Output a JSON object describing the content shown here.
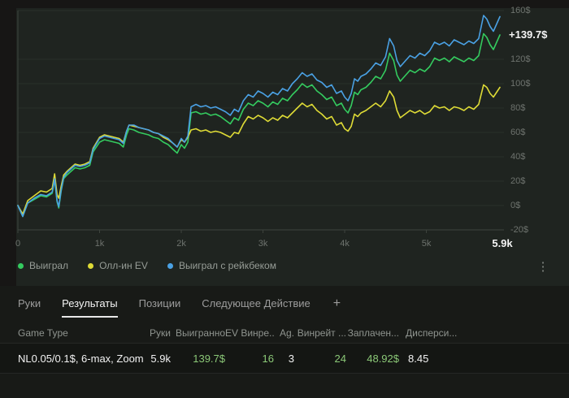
{
  "chart": {
    "y_axis": {
      "ticks": [
        {
          "label": "160$",
          "value": 160
        },
        {
          "label": "120$",
          "value": 120
        },
        {
          "label": "100$",
          "value": 100
        },
        {
          "label": "80$",
          "value": 80
        },
        {
          "label": "60$",
          "value": 60
        },
        {
          "label": "40$",
          "value": 40
        },
        {
          "label": "20$",
          "value": 20
        },
        {
          "label": "0$",
          "value": 0
        },
        {
          "label": "-20$",
          "value": -20
        }
      ]
    },
    "hidden_gridline_value": 140,
    "x_axis": {
      "ticks": [
        {
          "label": "0",
          "hands": 0
        },
        {
          "label": "1k",
          "hands": 1000
        },
        {
          "label": "2k",
          "hands": 2000
        },
        {
          "label": "3k",
          "hands": 3000
        },
        {
          "label": "4k",
          "hands": 4000
        },
        {
          "label": "5k",
          "hands": 5000
        }
      ],
      "end": {
        "label": "5.9k",
        "hands": 5900
      }
    }
  },
  "chart_data": {
    "type": "line",
    "xlabel_units": "hands",
    "xlim": [
      0,
      5900
    ],
    "ylim": [
      -20,
      160
    ],
    "grid": "horizontal",
    "legend_position": "bottom-left",
    "annotation": {
      "text": "+139.7$",
      "value": 139.7
    },
    "x": [
      0,
      60,
      120,
      200,
      280,
      350,
      420,
      450,
      480,
      500,
      530,
      560,
      600,
      650,
      700,
      760,
      820,
      880,
      920,
      1000,
      1060,
      1120,
      1180,
      1240,
      1290,
      1330,
      1360,
      1420,
      1480,
      1540,
      1600,
      1660,
      1720,
      1780,
      1840,
      1900,
      1950,
      2000,
      2040,
      2080,
      2120,
      2180,
      2240,
      2300,
      2360,
      2420,
      2480,
      2540,
      2600,
      2650,
      2700,
      2760,
      2820,
      2880,
      2940,
      3000,
      3060,
      3120,
      3180,
      3240,
      3300,
      3360,
      3420,
      3480,
      3540,
      3600,
      3660,
      3720,
      3780,
      3840,
      3900,
      3960,
      4000,
      4040,
      4080,
      4120,
      4160,
      4200,
      4260,
      4320,
      4380,
      4440,
      4500,
      4550,
      4600,
      4640,
      4680,
      4720,
      4760,
      4800,
      4860,
      4920,
      4980,
      5040,
      5100,
      5160,
      5220,
      5280,
      5340,
      5400,
      5460,
      5520,
      5580,
      5640,
      5700,
      5740,
      5780,
      5820,
      5860,
      5900
    ],
    "series": [
      {
        "name": "Выиграл",
        "color": "#34cb5f",
        "final_value": 139.7,
        "values": [
          0,
          -9,
          2,
          5,
          8,
          7,
          10,
          21,
          3,
          -2,
          12,
          22,
          25,
          28,
          31,
          30,
          31,
          33,
          44,
          52,
          54,
          53,
          52,
          51,
          48,
          58,
          63,
          62,
          60,
          59,
          58,
          56,
          55,
          52,
          50,
          46,
          43,
          50,
          47,
          52,
          76,
          77,
          75,
          76,
          74,
          75,
          73,
          70,
          67,
          72,
          70,
          79,
          84,
          82,
          86,
          84,
          81,
          85,
          83,
          88,
          86,
          91,
          95,
          100,
          97,
          99,
          94,
          91,
          87,
          89,
          82,
          84,
          79,
          76,
          82,
          93,
          91,
          95,
          97,
          101,
          106,
          104,
          111,
          125,
          119,
          107,
          102,
          105,
          108,
          111,
          109,
          112,
          110,
          114,
          121,
          119,
          121,
          118,
          122,
          120,
          118,
          121,
          119,
          123,
          141,
          138,
          132,
          128,
          134,
          140
        ]
      },
      {
        "name": "Олл-ин EV",
        "color": "#dedb36",
        "values": [
          0,
          -7,
          4,
          8,
          12,
          11,
          14,
          26,
          9,
          6,
          16,
          25,
          28,
          31,
          34,
          33,
          34,
          36,
          47,
          56,
          58,
          57,
          56,
          55,
          52,
          61,
          66,
          65,
          64,
          63,
          62,
          60,
          59,
          56,
          54,
          51,
          48,
          54,
          52,
          56,
          62,
          63,
          61,
          62,
          60,
          61,
          60,
          58,
          56,
          60,
          59,
          67,
          73,
          71,
          74,
          72,
          69,
          72,
          70,
          74,
          72,
          76,
          80,
          84,
          81,
          83,
          78,
          75,
          71,
          73,
          66,
          68,
          63,
          61,
          65,
          75,
          73,
          76,
          78,
          81,
          84,
          81,
          86,
          94,
          89,
          78,
          72,
          74,
          76,
          78,
          76,
          78,
          75,
          77,
          82,
          80,
          81,
          78,
          81,
          80,
          78,
          81,
          79,
          83,
          99,
          97,
          92,
          89,
          93,
          97
        ]
      },
      {
        "name": "Выиграл с рейкбеком",
        "color": "#4aa1e4",
        "values": [
          0,
          -9,
          2,
          6,
          9,
          8,
          11,
          22,
          4,
          -1,
          13,
          23,
          27,
          30,
          33,
          32,
          33,
          35,
          46,
          55,
          57,
          56,
          55,
          54,
          51,
          61,
          66,
          66,
          64,
          63,
          62,
          60,
          59,
          57,
          55,
          51,
          48,
          55,
          52,
          57,
          81,
          83,
          81,
          82,
          80,
          81,
          79,
          77,
          74,
          79,
          77,
          86,
          91,
          89,
          94,
          92,
          89,
          93,
          91,
          96,
          94,
          100,
          104,
          109,
          106,
          108,
          103,
          101,
          97,
          99,
          92,
          94,
          89,
          86,
          92,
          104,
          102,
          106,
          108,
          112,
          117,
          115,
          122,
          137,
          131,
          119,
          114,
          117,
          120,
          123,
          121,
          125,
          123,
          127,
          134,
          132,
          134,
          131,
          136,
          134,
          132,
          135,
          133,
          137,
          156,
          153,
          147,
          143,
          149,
          155
        ]
      }
    ]
  },
  "icons": {
    "more_vertical": "⋮",
    "add_tab": "+"
  },
  "tabs": {
    "items": [
      "Руки",
      "Результаты",
      "Позиции",
      "Следующее Действие"
    ],
    "active_index": 1
  },
  "table": {
    "columns": [
      "Game Type",
      "Руки",
      "Выигранно",
      "EV Винре...",
      "Ag.",
      "Винрейт ...",
      "Заплачен...",
      "Дисперси..."
    ],
    "row": {
      "cells": [
        "NL0.05/0.1$, 6-max, Zoom",
        "5.9k",
        "139.7$",
        "16",
        "3",
        "24",
        "48.92$",
        "8.45"
      ]
    },
    "green_value_indices": [
      2,
      3,
      5,
      6
    ]
  },
  "colors": {
    "positive_text": "#8bc877",
    "chart_background": "#1f2420",
    "panel_background": "#181a17"
  }
}
